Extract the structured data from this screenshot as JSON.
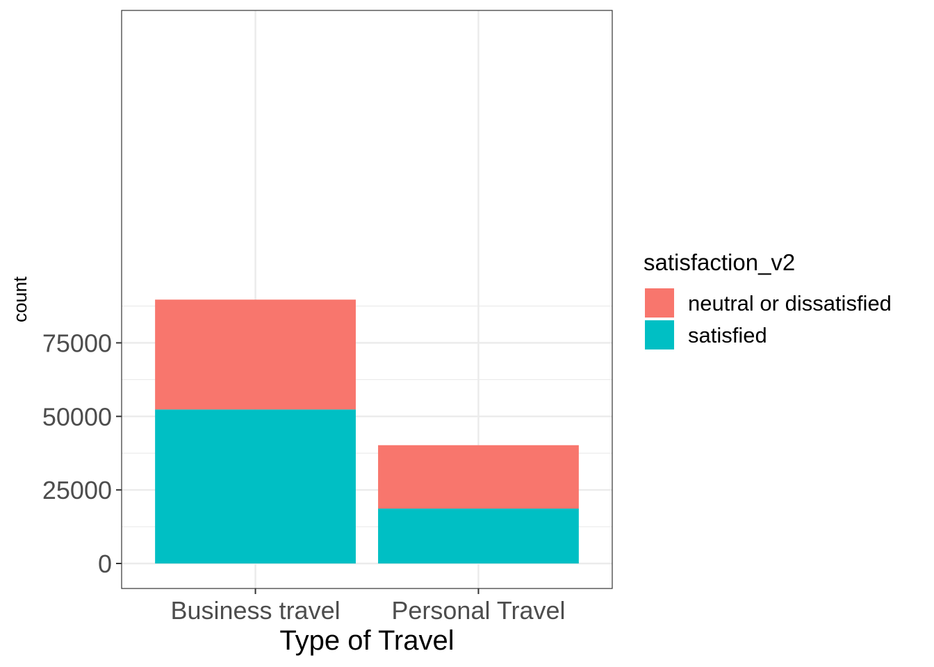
{
  "chart_data": {
    "type": "bar",
    "stacked": true,
    "xlabel": "Type of Travel",
    "ylabel": "count",
    "categories": [
      "Business travel",
      "Personal Travel"
    ],
    "series": [
      {
        "name": "satisfied",
        "color": "#00BFC4",
        "values": [
          52356,
          18666
        ]
      },
      {
        "name": "neutral or dissatisfied",
        "color": "#F8766D",
        "values": [
          37337,
          21545
        ]
      }
    ],
    "ylim": [
      -8500,
      188000
    ],
    "yticks": [
      0,
      25000,
      50000,
      75000
    ],
    "ytick_labels": [
      "0",
      "25000",
      "50000",
      "75000"
    ],
    "grid": true,
    "legend": {
      "title": "satisfaction_v2",
      "position": "right",
      "entries": [
        {
          "label": "neutral or dissatisfied",
          "color": "#F8766D"
        },
        {
          "label": "satisfied",
          "color": "#00BFC4"
        }
      ]
    }
  }
}
